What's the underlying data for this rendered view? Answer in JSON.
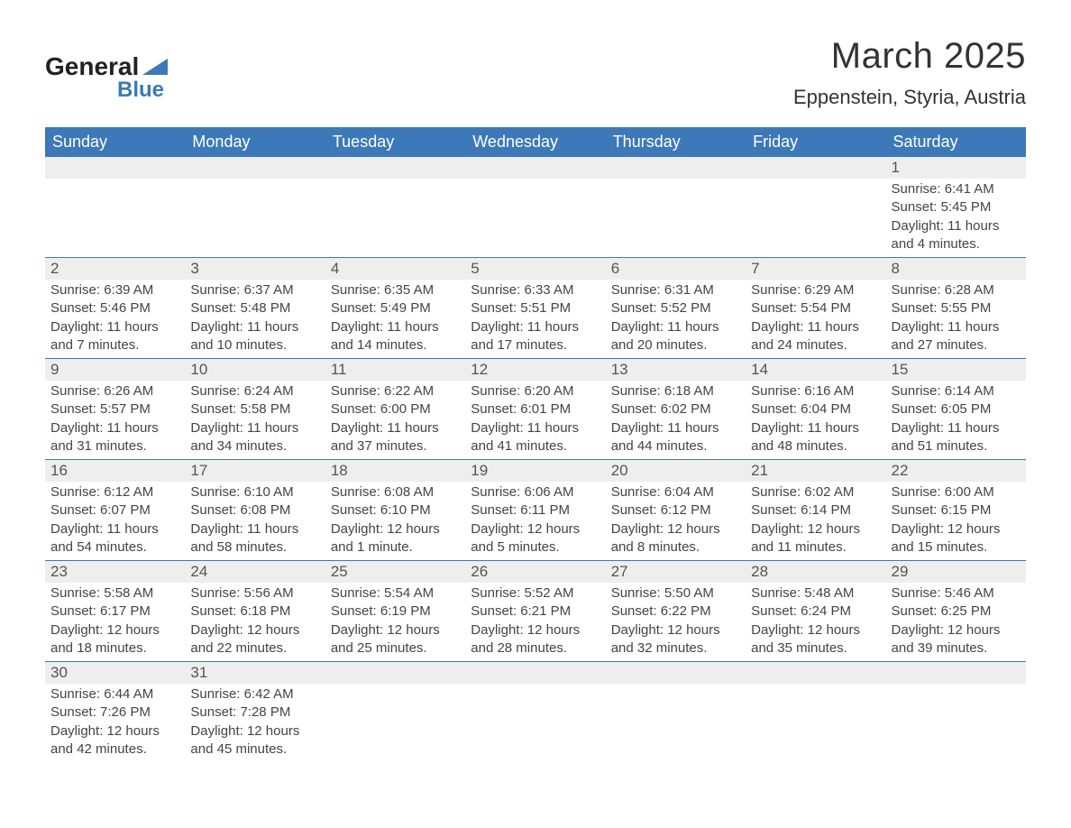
{
  "logo": {
    "text1": "General",
    "text2": "Blue"
  },
  "title": "March 2025",
  "location": "Eppenstein, Styria, Austria",
  "colors": {
    "header_bg": "#3d79b8",
    "header_fg": "#ffffff",
    "daynum_bg": "#eeeeee",
    "row_divider": "#3d79b8",
    "text": "#444444",
    "background": "#ffffff"
  },
  "day_headers": [
    "Sunday",
    "Monday",
    "Tuesday",
    "Wednesday",
    "Thursday",
    "Friday",
    "Saturday"
  ],
  "weeks": [
    [
      null,
      null,
      null,
      null,
      null,
      null,
      {
        "n": "1",
        "sunrise": "Sunrise: 6:41 AM",
        "sunset": "Sunset: 5:45 PM",
        "daylight": "Daylight: 11 hours and 4 minutes."
      }
    ],
    [
      {
        "n": "2",
        "sunrise": "Sunrise: 6:39 AM",
        "sunset": "Sunset: 5:46 PM",
        "daylight": "Daylight: 11 hours and 7 minutes."
      },
      {
        "n": "3",
        "sunrise": "Sunrise: 6:37 AM",
        "sunset": "Sunset: 5:48 PM",
        "daylight": "Daylight: 11 hours and 10 minutes."
      },
      {
        "n": "4",
        "sunrise": "Sunrise: 6:35 AM",
        "sunset": "Sunset: 5:49 PM",
        "daylight": "Daylight: 11 hours and 14 minutes."
      },
      {
        "n": "5",
        "sunrise": "Sunrise: 6:33 AM",
        "sunset": "Sunset: 5:51 PM",
        "daylight": "Daylight: 11 hours and 17 minutes."
      },
      {
        "n": "6",
        "sunrise": "Sunrise: 6:31 AM",
        "sunset": "Sunset: 5:52 PM",
        "daylight": "Daylight: 11 hours and 20 minutes."
      },
      {
        "n": "7",
        "sunrise": "Sunrise: 6:29 AM",
        "sunset": "Sunset: 5:54 PM",
        "daylight": "Daylight: 11 hours and 24 minutes."
      },
      {
        "n": "8",
        "sunrise": "Sunrise: 6:28 AM",
        "sunset": "Sunset: 5:55 PM",
        "daylight": "Daylight: 11 hours and 27 minutes."
      }
    ],
    [
      {
        "n": "9",
        "sunrise": "Sunrise: 6:26 AM",
        "sunset": "Sunset: 5:57 PM",
        "daylight": "Daylight: 11 hours and 31 minutes."
      },
      {
        "n": "10",
        "sunrise": "Sunrise: 6:24 AM",
        "sunset": "Sunset: 5:58 PM",
        "daylight": "Daylight: 11 hours and 34 minutes."
      },
      {
        "n": "11",
        "sunrise": "Sunrise: 6:22 AM",
        "sunset": "Sunset: 6:00 PM",
        "daylight": "Daylight: 11 hours and 37 minutes."
      },
      {
        "n": "12",
        "sunrise": "Sunrise: 6:20 AM",
        "sunset": "Sunset: 6:01 PM",
        "daylight": "Daylight: 11 hours and 41 minutes."
      },
      {
        "n": "13",
        "sunrise": "Sunrise: 6:18 AM",
        "sunset": "Sunset: 6:02 PM",
        "daylight": "Daylight: 11 hours and 44 minutes."
      },
      {
        "n": "14",
        "sunrise": "Sunrise: 6:16 AM",
        "sunset": "Sunset: 6:04 PM",
        "daylight": "Daylight: 11 hours and 48 minutes."
      },
      {
        "n": "15",
        "sunrise": "Sunrise: 6:14 AM",
        "sunset": "Sunset: 6:05 PM",
        "daylight": "Daylight: 11 hours and 51 minutes."
      }
    ],
    [
      {
        "n": "16",
        "sunrise": "Sunrise: 6:12 AM",
        "sunset": "Sunset: 6:07 PM",
        "daylight": "Daylight: 11 hours and 54 minutes."
      },
      {
        "n": "17",
        "sunrise": "Sunrise: 6:10 AM",
        "sunset": "Sunset: 6:08 PM",
        "daylight": "Daylight: 11 hours and 58 minutes."
      },
      {
        "n": "18",
        "sunrise": "Sunrise: 6:08 AM",
        "sunset": "Sunset: 6:10 PM",
        "daylight": "Daylight: 12 hours and 1 minute."
      },
      {
        "n": "19",
        "sunrise": "Sunrise: 6:06 AM",
        "sunset": "Sunset: 6:11 PM",
        "daylight": "Daylight: 12 hours and 5 minutes."
      },
      {
        "n": "20",
        "sunrise": "Sunrise: 6:04 AM",
        "sunset": "Sunset: 6:12 PM",
        "daylight": "Daylight: 12 hours and 8 minutes."
      },
      {
        "n": "21",
        "sunrise": "Sunrise: 6:02 AM",
        "sunset": "Sunset: 6:14 PM",
        "daylight": "Daylight: 12 hours and 11 minutes."
      },
      {
        "n": "22",
        "sunrise": "Sunrise: 6:00 AM",
        "sunset": "Sunset: 6:15 PM",
        "daylight": "Daylight: 12 hours and 15 minutes."
      }
    ],
    [
      {
        "n": "23",
        "sunrise": "Sunrise: 5:58 AM",
        "sunset": "Sunset: 6:17 PM",
        "daylight": "Daylight: 12 hours and 18 minutes."
      },
      {
        "n": "24",
        "sunrise": "Sunrise: 5:56 AM",
        "sunset": "Sunset: 6:18 PM",
        "daylight": "Daylight: 12 hours and 22 minutes."
      },
      {
        "n": "25",
        "sunrise": "Sunrise: 5:54 AM",
        "sunset": "Sunset: 6:19 PM",
        "daylight": "Daylight: 12 hours and 25 minutes."
      },
      {
        "n": "26",
        "sunrise": "Sunrise: 5:52 AM",
        "sunset": "Sunset: 6:21 PM",
        "daylight": "Daylight: 12 hours and 28 minutes."
      },
      {
        "n": "27",
        "sunrise": "Sunrise: 5:50 AM",
        "sunset": "Sunset: 6:22 PM",
        "daylight": "Daylight: 12 hours and 32 minutes."
      },
      {
        "n": "28",
        "sunrise": "Sunrise: 5:48 AM",
        "sunset": "Sunset: 6:24 PM",
        "daylight": "Daylight: 12 hours and 35 minutes."
      },
      {
        "n": "29",
        "sunrise": "Sunrise: 5:46 AM",
        "sunset": "Sunset: 6:25 PM",
        "daylight": "Daylight: 12 hours and 39 minutes."
      }
    ],
    [
      {
        "n": "30",
        "sunrise": "Sunrise: 6:44 AM",
        "sunset": "Sunset: 7:26 PM",
        "daylight": "Daylight: 12 hours and 42 minutes."
      },
      {
        "n": "31",
        "sunrise": "Sunrise: 6:42 AM",
        "sunset": "Sunset: 7:28 PM",
        "daylight": "Daylight: 12 hours and 45 minutes."
      },
      null,
      null,
      null,
      null,
      null
    ]
  ]
}
